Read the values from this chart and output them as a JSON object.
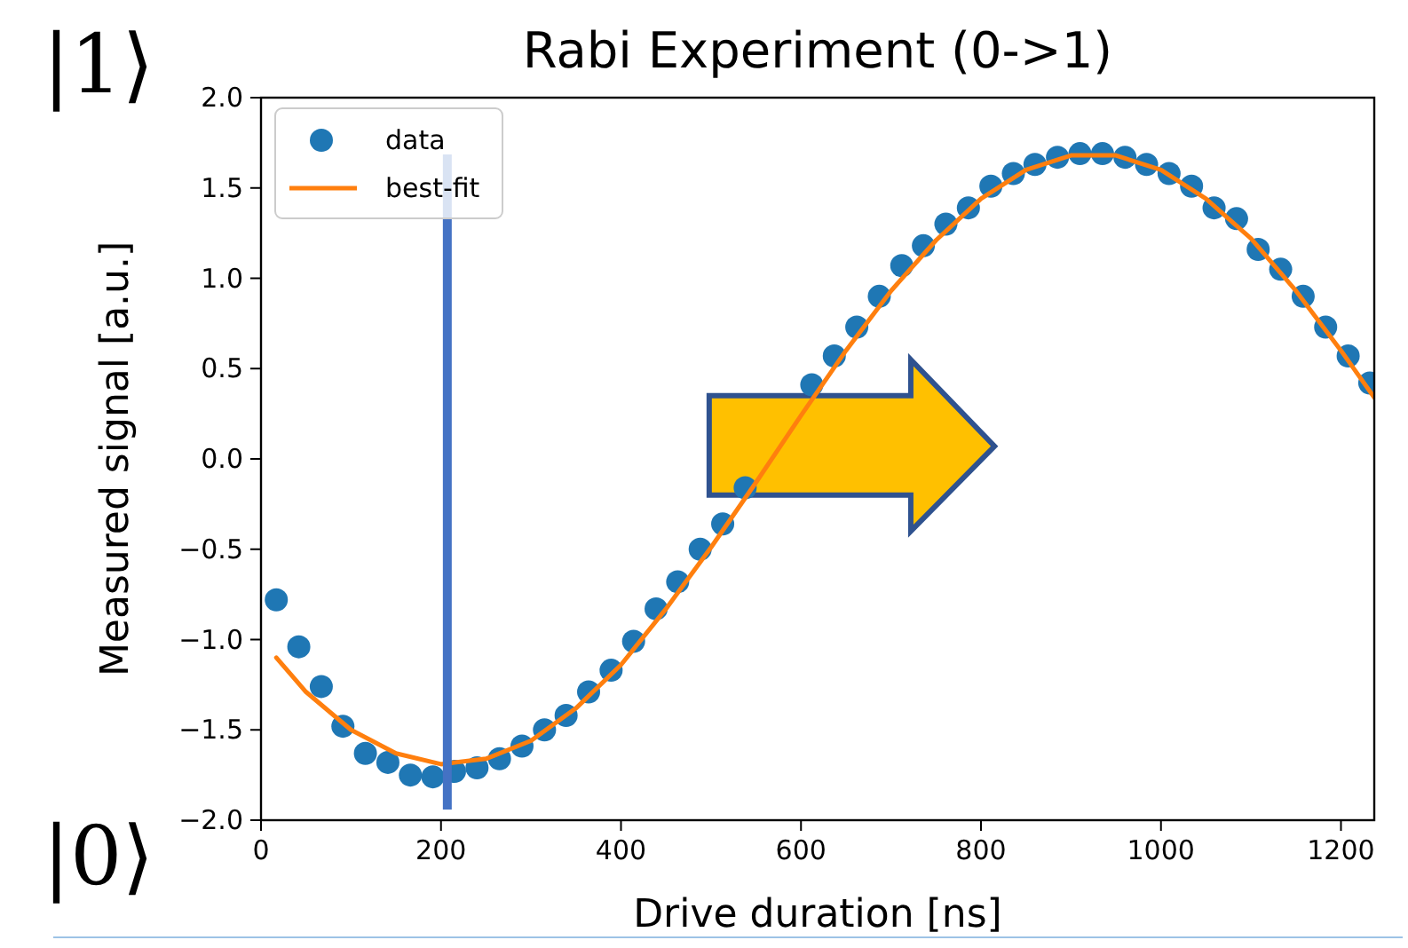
{
  "chart_data": {
    "type": "scatter",
    "title": "Rabi Experiment (0->1)",
    "xlabel": "Drive duration [ns]",
    "ylabel": "Measured signal [a.u.]",
    "annotations": [
      "|1⟩",
      "|0⟩"
    ],
    "xlim": [
      0,
      1237
    ],
    "xticks": [
      0,
      200,
      400,
      600,
      800,
      1000,
      1200
    ],
    "ylim": [
      -2,
      2
    ],
    "yticks": [
      {
        "value": -2,
        "label": "−2.0"
      },
      {
        "value": -1.5,
        "label": "−1.5"
      },
      {
        "value": -1,
        "label": "−1.0"
      },
      {
        "value": -0.5,
        "label": "−0.5"
      },
      {
        "value": 0,
        "label": "0.0"
      },
      {
        "value": 0.5,
        "label": "0.5"
      },
      {
        "value": 1,
        "label": "1.0"
      },
      {
        "value": 1.5,
        "label": "1.5"
      },
      {
        "value": 2,
        "label": "2.0"
      }
    ],
    "grid": false,
    "legend": "top left",
    "ref_lines": [
      {
        "axis": "x",
        "value": 207,
        "color": "#4472c4"
      }
    ],
    "series": [
      {
        "name": "data",
        "color": "#1f77b4",
        "marker": "circle",
        "x": [
          17,
          42,
          67,
          91,
          116,
          141,
          166,
          191,
          215,
          240,
          265,
          290,
          315,
          339,
          364,
          389,
          414,
          439,
          463,
          488,
          513,
          538,
          612,
          637,
          662,
          687,
          712,
          736,
          761,
          786,
          811,
          836,
          860,
          885,
          910,
          935,
          960,
          984,
          1009,
          1034,
          1059,
          1084,
          1108,
          1133,
          1158,
          1183,
          1208,
          1232
        ],
        "values": [
          -0.78,
          -1.04,
          -1.26,
          -1.48,
          -1.63,
          -1.68,
          -1.75,
          -1.76,
          -1.73,
          -1.71,
          -1.66,
          -1.59,
          -1.5,
          -1.42,
          -1.29,
          -1.17,
          -1.01,
          -0.83,
          -0.68,
          -0.5,
          -0.36,
          -0.16,
          0.41,
          0.57,
          0.73,
          0.9,
          1.07,
          1.18,
          1.3,
          1.39,
          1.51,
          1.58,
          1.63,
          1.67,
          1.69,
          1.69,
          1.67,
          1.63,
          1.58,
          1.51,
          1.39,
          1.33,
          1.16,
          1.05,
          0.9,
          0.73,
          0.57,
          0.42
        ]
      },
      {
        "name": "best-fit",
        "type": "line",
        "color": "#ff7f0e",
        "marker": "none",
        "line_style": "solid",
        "x": [
          17,
          50,
          100,
          150,
          200,
          250,
          300,
          350,
          400,
          450,
          500,
          550,
          600,
          650,
          700,
          750,
          800,
          850,
          900,
          950,
          1000,
          1050,
          1100,
          1150,
          1200,
          1237
        ],
        "values": [
          -1.1,
          -1.29,
          -1.5,
          -1.63,
          -1.69,
          -1.66,
          -1.56,
          -1.38,
          -1.14,
          -0.83,
          -0.49,
          -0.13,
          0.24,
          0.6,
          0.93,
          1.21,
          1.44,
          1.6,
          1.68,
          1.68,
          1.6,
          1.44,
          1.22,
          0.93,
          0.6,
          0.34
        ]
      }
    ]
  }
}
